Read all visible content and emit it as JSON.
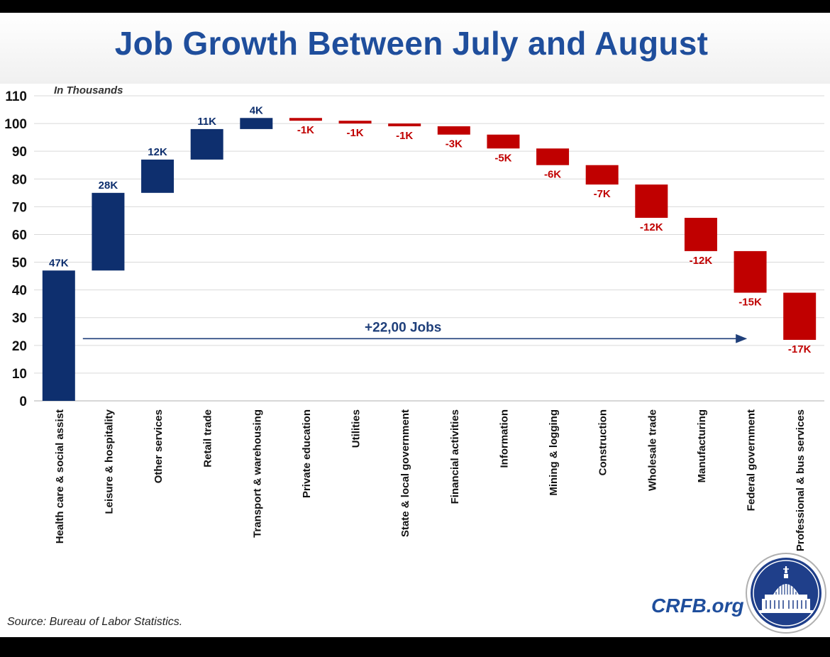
{
  "header": {
    "title": "Job Growth Between July and August"
  },
  "footer": {
    "source": "Source: Bureau of Labor Statistics.",
    "brand": "CRFB.org"
  },
  "colors": {
    "positive": "#0e2f6e",
    "negative": "#c00000",
    "positive_label": "#0e2f6e",
    "negative_label": "#c00000",
    "grid": "#d9d9d9",
    "axis_text": "#111111",
    "title": "#1f4e9c",
    "seal_outer": "#1f3f8a"
  },
  "chart_data": {
    "type": "waterfall",
    "units_note": "In Thousands",
    "ylim": [
      0,
      110
    ],
    "yticks": [
      0,
      10,
      20,
      30,
      40,
      50,
      60,
      70,
      80,
      90,
      100,
      110
    ],
    "grid": true,
    "categories": [
      "Health care & social assist",
      "Leisure & hospitality",
      "Other services",
      "Retail trade",
      "Transport & warehousing",
      "Private education",
      "Utilities",
      "State & local government",
      "Financial activities",
      "Information",
      "Mining & logging",
      "Construction",
      "Wholesale trade",
      "Manufacturing",
      "Federal government",
      "Professional & bus services"
    ],
    "values": [
      47,
      28,
      12,
      11,
      4,
      -1,
      -1,
      -1,
      -3,
      -5,
      -6,
      -7,
      -12,
      -12,
      -15,
      -17
    ],
    "data_labels": [
      "47K",
      "28K",
      "12K",
      "11K",
      "4K",
      "-1K",
      "-1K",
      "-1K",
      "-3K",
      "-5K",
      "-6K",
      "-7K",
      "-12K",
      "-12K",
      "-15K",
      "-17K"
    ],
    "annotation": {
      "text": "+22,00 Jobs",
      "level": 25
    }
  }
}
